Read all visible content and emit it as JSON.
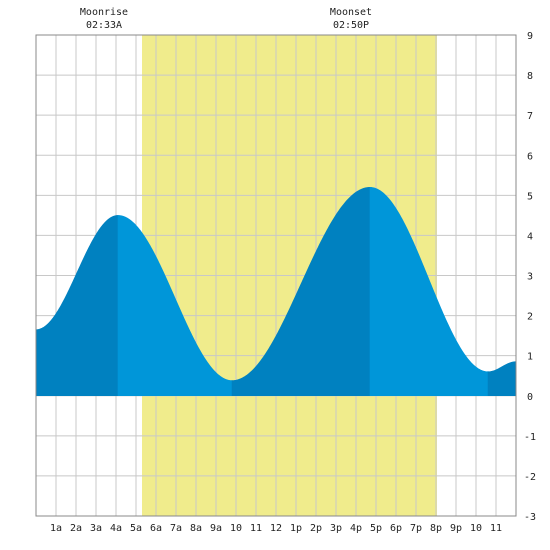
{
  "moon": {
    "moonrise_label": "Moonrise",
    "moonrise_time": "02:33A",
    "moonset_label": "Moonset",
    "moonset_time": "02:50P"
  },
  "chart_data": {
    "type": "area",
    "title": "",
    "xlabel": "",
    "ylabel": "",
    "x_tick_labels": [
      "1a",
      "2a",
      "3a",
      "4a",
      "5a",
      "6a",
      "7a",
      "8a",
      "9a",
      "10",
      "11",
      "12",
      "1p",
      "2p",
      "3p",
      "4p",
      "5p",
      "6p",
      "7p",
      "8p",
      "9p",
      "10",
      "11"
    ],
    "x_range": [
      0,
      24
    ],
    "ylim": [
      -3,
      9
    ],
    "y_ticks": [
      -3,
      -2,
      -1,
      0,
      1,
      2,
      3,
      4,
      5,
      6,
      7,
      8,
      9
    ],
    "grid": true,
    "daylight_hours": [
      5.3,
      20.05
    ],
    "moonrise_hour": 2.55,
    "moonset_hour": 14.83,
    "extrema": [
      {
        "x": 0.0,
        "y": 1.65
      },
      {
        "x": 4.1,
        "y": 4.5
      },
      {
        "x": 9.8,
        "y": 0.38
      },
      {
        "x": 16.7,
        "y": 5.2
      },
      {
        "x": 22.6,
        "y": 0.6
      },
      {
        "x": 24.0,
        "y": 0.85
      }
    ],
    "series": [
      {
        "values_x": [
          0,
          1,
          2,
          3,
          4.1,
          5,
          6,
          7,
          8,
          9,
          9.8,
          11,
          12,
          13,
          14,
          15,
          16,
          16.7,
          17.5,
          18.5,
          19.5,
          20.5,
          21.5,
          22.6,
          23.5,
          24
        ],
        "values_y": [
          1.65,
          2.3,
          3.2,
          4.0,
          4.5,
          4.25,
          3.4,
          2.3,
          1.3,
          0.65,
          0.38,
          0.62,
          1.1,
          1.95,
          3.05,
          4.2,
          5.0,
          5.2,
          4.95,
          3.9,
          2.6,
          1.4,
          0.8,
          0.6,
          0.68,
          0.85
        ]
      }
    ],
    "colors": {
      "daylight": "#f0ec8c",
      "tide_dark": "#0081c0",
      "tide_light": "#0096d9",
      "grid": "#c8c8c8",
      "border": "#888888"
    }
  }
}
